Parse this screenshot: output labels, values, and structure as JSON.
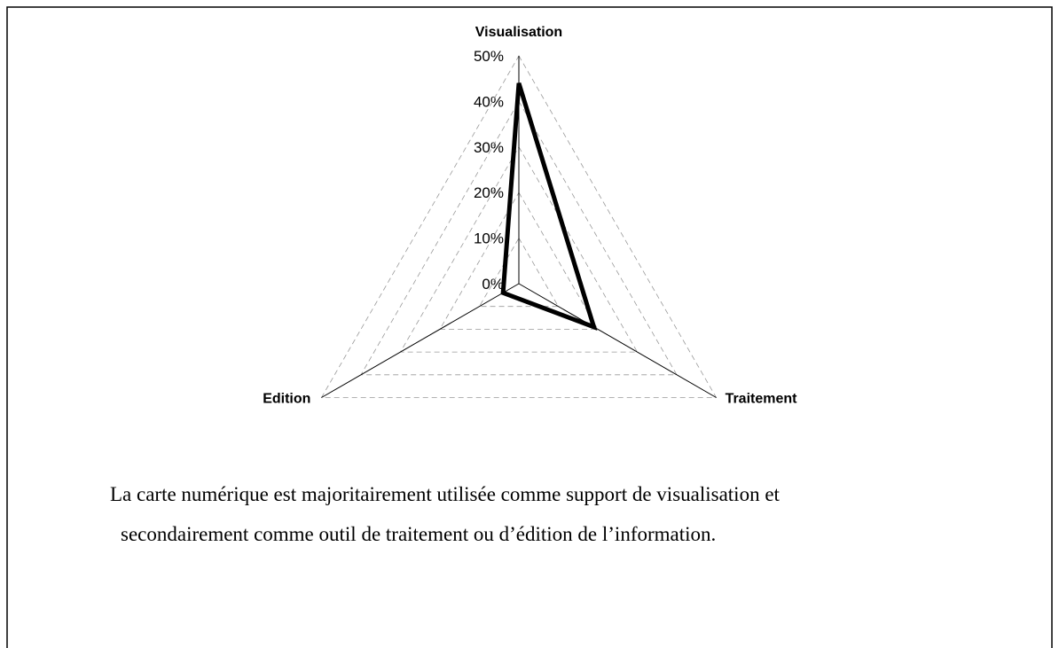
{
  "chart_data": {
    "type": "radar",
    "categories": [
      "Visualisation",
      "Traitement",
      "Edition"
    ],
    "values": [
      44,
      19,
      4
    ],
    "color": "#000000",
    "rlim": [
      0,
      50
    ],
    "rticks": [
      {
        "value": 0,
        "label": "0%"
      },
      {
        "value": 10,
        "label": "10%"
      },
      {
        "value": 20,
        "label": "20%"
      },
      {
        "value": 30,
        "label": "30%"
      },
      {
        "value": 40,
        "label": "40%"
      },
      {
        "value": 50,
        "label": "50%"
      }
    ],
    "grid": true
  },
  "caption": {
    "lines": [
      "La carte numérique est majoritairement utilisée comme support de visualisation et",
      "secondairement comme outil de traitement ou d’édition de l’information."
    ]
  }
}
